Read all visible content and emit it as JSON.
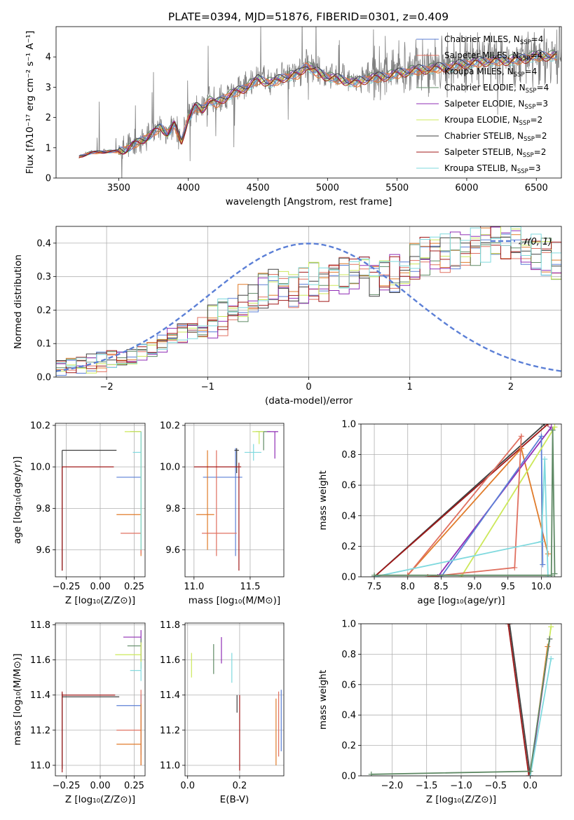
{
  "figure_title": "PLATE=0394, MJD=51876, FIBERID=0301, z=0.409",
  "series_colors": {
    "chabrier_miles": "#5b7fd6",
    "salpeter_miles": "#e07060",
    "kroupa_miles": "#e07b2a",
    "chabrier_elodie": "#5f8a65",
    "salpeter_elodie": "#8f2db5",
    "kroupa_elodie": "#cce85a",
    "chabrier_stelib": "#404040",
    "salpeter_stelib": "#a01818",
    "kroupa_stelib": "#7fd9de",
    "observed": "#808080",
    "gaussian": "#5b7fd6"
  },
  "chart_data": [
    {
      "id": "spectrum",
      "type": "line",
      "xlabel": "wavelength [Angstrom, rest frame]",
      "ylabel": "Flux [fλ10⁻¹⁷ erg cm⁻² s⁻¹ A⁻¹]",
      "xlim": [
        3050,
        6680
      ],
      "ylim": [
        0,
        5
      ],
      "xticks": [
        "3500",
        "4000",
        "4500",
        "5000",
        "5500",
        "6000",
        "6500"
      ],
      "yticks": [
        "0",
        "1",
        "2",
        "3",
        "4"
      ],
      "grid": false,
      "legend_position": "top-right",
      "legend": [
        {
          "base": "Chabrier MILES, N",
          "sub": "SSP",
          "tail": "=4",
          "key": "chabrier_miles"
        },
        {
          "base": "Salpeter MILES, N",
          "sub": "SSP",
          "tail": "=4",
          "key": "salpeter_miles"
        },
        {
          "base": "Kroupa MILES, N",
          "sub": "SSP",
          "tail": "=4",
          "key": "kroupa_miles"
        },
        {
          "base": "Chabrier ELODIE, N",
          "sub": "SSP",
          "tail": "=4",
          "key": "chabrier_elodie"
        },
        {
          "base": "Salpeter ELODIE, N",
          "sub": "SSP",
          "tail": "=3",
          "key": "salpeter_elodie"
        },
        {
          "base": "Kroupa ELODIE, N",
          "sub": "SSP",
          "tail": "=2",
          "key": "kroupa_elodie"
        },
        {
          "base": "Chabrier STELIB, N",
          "sub": "SSP",
          "tail": "=2",
          "key": "chabrier_stelib"
        },
        {
          "base": "Salpeter STELIB, N",
          "sub": "SSP",
          "tail": "=2",
          "key": "salpeter_stelib"
        },
        {
          "base": "Kroupa STELIB, N",
          "sub": "SSP",
          "tail": "=3",
          "key": "kroupa_stelib"
        }
      ],
      "continuum": {
        "x": [
          3210,
          3300,
          3400,
          3500,
          3550,
          3600,
          3700,
          3800,
          3850,
          3900,
          3950,
          4000,
          4050,
          4100,
          4150,
          4200,
          4300,
          4400,
          4500,
          4600,
          4700,
          4800,
          4850,
          4900,
          5000,
          5100,
          5200,
          5300,
          5400,
          5500,
          5600,
          5700,
          5800,
          5900,
          6000,
          6100,
          6200,
          6300,
          6400,
          6500
        ],
        "y": [
          0.7,
          0.85,
          0.88,
          0.9,
          0.95,
          1.1,
          1.35,
          1.7,
          1.5,
          1.8,
          1.2,
          2.0,
          2.4,
          2.3,
          2.6,
          2.5,
          2.8,
          3.0,
          3.3,
          3.2,
          3.4,
          3.5,
          3.8,
          3.6,
          3.4,
          3.3,
          3.2,
          3.35,
          3.4,
          3.5,
          3.6,
          3.65,
          3.7,
          3.75,
          3.85,
          3.9,
          3.95,
          3.95,
          4.0,
          4.1
        ]
      }
    },
    {
      "id": "residuals",
      "type": "histogram",
      "xlabel": "(data-model)/error",
      "ylabel": "Normed distribution",
      "xlim": [
        -2.5,
        2.5
      ],
      "ylim": [
        0,
        0.45
      ],
      "xticks": [
        "−2",
        "−1",
        "0",
        "1",
        "2"
      ],
      "yticks": [
        "0.0",
        "0.1",
        "0.2",
        "0.3",
        "0.4"
      ],
      "grid": true,
      "legend_position": "top-right",
      "legend_label": "𝒩(0, 1)",
      "bin_width": 0.1,
      "bin_start": -2.5,
      "base_density": [
        0.02,
        0.03,
        0.035,
        0.04,
        0.045,
        0.05,
        0.06,
        0.065,
        0.08,
        0.09,
        0.1,
        0.12,
        0.13,
        0.14,
        0.15,
        0.17,
        0.18,
        0.2,
        0.22,
        0.23,
        0.26,
        0.27,
        0.28,
        0.26,
        0.28,
        0.29,
        0.27,
        0.28,
        0.3,
        0.31,
        0.3,
        0.3,
        0.32,
        0.31,
        0.33,
        0.34,
        0.36,
        0.37,
        0.37,
        0.38,
        0.38,
        0.39,
        0.4,
        0.4,
        0.41,
        0.4,
        0.39,
        0.37,
        0.36,
        0.35,
        0.35,
        0.33,
        0.32,
        0.31,
        0.31,
        0.32,
        0.3,
        0.29,
        0.27,
        0.26,
        0.25,
        0.24,
        0.23,
        0.22,
        0.2,
        0.17,
        0.16,
        0.15,
        0.14,
        0.13,
        0.12,
        0.11,
        0.1,
        0.09,
        0.085,
        0.08,
        0.075,
        0.07,
        0.065,
        0.06,
        0.055,
        0.05,
        0.05,
        0.045,
        0.045,
        0.04,
        0.04,
        0.035,
        0.035,
        0.03,
        0.03,
        0.03,
        0.03,
        0.03,
        0.03,
        0.03,
        0.03,
        0.03,
        0.03,
        0.03
      ]
    },
    {
      "id": "age_vs_Z",
      "type": "scatter",
      "xlabel": "Z [log₁₀(Z/Z⊙)]",
      "ylabel": "age  [log₁₀(age/yr)]",
      "xlim": [
        -0.33,
        0.33
      ],
      "ylim": [
        9.47,
        10.21
      ],
      "xticks": [
        "−0.25",
        "0.00",
        "0.25"
      ],
      "yticks": [
        "9.6",
        "9.8",
        "10.0",
        "10.2"
      ],
      "grid": true,
      "points": [
        {
          "key": "chabrier_miles",
          "x": 0.3,
          "y": 9.95,
          "ex": [
            0.12,
            0.3
          ],
          "ey": [
            9.6,
            10.17
          ]
        },
        {
          "key": "kroupa_miles",
          "x": 0.3,
          "y": 9.77,
          "ex": [
            0.12,
            0.3
          ],
          "ey": [
            9.57,
            10.17
          ]
        },
        {
          "key": "salpeter_miles",
          "x": 0.3,
          "y": 9.68,
          "ex": [
            0.15,
            0.3
          ],
          "ey": [
            9.58,
            10.17
          ]
        },
        {
          "key": "chabrier_elodie",
          "x": 0.3,
          "y": 10.17,
          "ex": [
            0.22,
            0.3
          ],
          "ey": [
            9.6,
            10.17
          ]
        },
        {
          "key": "kroupa_elodie",
          "x": 0.3,
          "y": 10.17,
          "ex": [
            0.18,
            0.3
          ],
          "ey": [
            9.6,
            10.17
          ]
        },
        {
          "key": "kroupa_stelib",
          "x": 0.3,
          "y": 10.07,
          "ex": [
            0.24,
            0.3
          ],
          "ey": [
            9.6,
            10.17
          ]
        },
        {
          "key": "chabrier_stelib",
          "x": -0.28,
          "y": 10.08,
          "ex": [
            -0.28,
            0.12
          ],
          "ey": [
            9.5,
            10.08
          ]
        },
        {
          "key": "salpeter_stelib",
          "x": -0.28,
          "y": 10.0,
          "ex": [
            -0.28,
            0.1
          ],
          "ey": [
            9.5,
            10.0
          ]
        }
      ]
    },
    {
      "id": "age_vs_mass",
      "type": "scatter",
      "xlabel": "mass [log₁₀(M/M⊙)]",
      "ylabel": "",
      "xlim": [
        10.92,
        11.8
      ],
      "ylim": [
        9.47,
        10.21
      ],
      "xticks": [
        "11.0",
        "11.5"
      ],
      "yticks": [
        "9.6",
        "9.8",
        "10.0",
        "10.2"
      ],
      "grid": true,
      "points": [
        {
          "key": "chabrier_miles",
          "x": 11.37,
          "y": 9.95,
          "ex": [
            11.08,
            11.43
          ],
          "ey": [
            9.57,
            10.09
          ]
        },
        {
          "key": "kroupa_miles",
          "x": 11.12,
          "y": 9.77,
          "ex": [
            11.02,
            11.18
          ],
          "ey": [
            9.6,
            10.08
          ]
        },
        {
          "key": "salpeter_miles",
          "x": 11.2,
          "y": 9.68,
          "ex": [
            11.07,
            11.38
          ],
          "ey": [
            9.57,
            10.08
          ]
        },
        {
          "key": "chabrier_elodie",
          "x": 11.62,
          "y": 10.17,
          "ex": [
            11.55,
            11.68
          ],
          "ey": [
            10.08,
            10.17
          ]
        },
        {
          "key": "kroupa_elodie",
          "x": 11.58,
          "y": 10.17,
          "ex": [
            11.52,
            11.62
          ],
          "ey": [
            10.11,
            10.17
          ]
        },
        {
          "key": "salpeter_elodie",
          "x": 11.72,
          "y": 10.17,
          "ex": [
            11.65,
            11.75
          ],
          "ey": [
            10.04,
            10.17
          ]
        },
        {
          "key": "kroupa_stelib",
          "x": 11.53,
          "y": 10.07,
          "ex": [
            11.45,
            11.6
          ],
          "ey": [
            10.03,
            10.11
          ]
        },
        {
          "key": "chabrier_stelib",
          "x": 11.38,
          "y": 10.08,
          "ex": [
            11.36,
            11.4
          ],
          "ey": [
            9.97,
            10.09
          ]
        },
        {
          "key": "salpeter_stelib",
          "x": 11.4,
          "y": 10.0,
          "ex": [
            11.0,
            11.42
          ],
          "ey": [
            9.5,
            10.02
          ]
        }
      ]
    },
    {
      "id": "mass_weight_vs_age",
      "type": "line",
      "xlabel": "age  [log₁₀(age/yr)]",
      "ylabel": "mass weight",
      "xlim": [
        7.3,
        10.3
      ],
      "ylim": [
        0,
        1
      ],
      "xticks": [
        "7.5",
        "8.0",
        "8.5",
        "9.0",
        "9.5",
        "10.0"
      ],
      "yticks": [
        "0.0",
        "0.2",
        "0.4",
        "0.6",
        "0.8",
        "1.0"
      ],
      "grid": true,
      "series": [
        {
          "key": "chabrier_stelib",
          "x": [
            7.5,
            10.05
          ],
          "y": [
            0.0,
            1.0
          ]
        },
        {
          "key": "salpeter_stelib",
          "x": [
            7.5,
            10.1
          ],
          "y": [
            0.0,
            1.0
          ]
        },
        {
          "key": "kroupa_miles",
          "x": [
            8.0,
            9.7,
            10.1
          ],
          "y": [
            0.01,
            0.84,
            0.15
          ]
        },
        {
          "key": "salpeter_elodie",
          "x": [
            8.45,
            10.15
          ],
          "y": [
            0.0,
            0.98
          ]
        },
        {
          "key": "chabrier_miles",
          "x": [
            8.5,
            10.0,
            10.02
          ],
          "y": [
            0.0,
            0.92,
            0.08
          ]
        },
        {
          "key": "kroupa_elodie",
          "x": [
            8.8,
            10.2
          ],
          "y": [
            0.0,
            0.98
          ]
        },
        {
          "key": "salpeter_miles",
          "x": [
            8.3,
            9.6,
            9.7,
            8.0
          ],
          "y": [
            0.0,
            0.06,
            0.92,
            0.01
          ]
        },
        {
          "key": "kroupa_stelib",
          "x": [
            7.5,
            10.0,
            10.05,
            10.1
          ],
          "y": [
            0.0,
            0.23,
            0.77,
            0.0
          ]
        },
        {
          "key": "chabrier_elodie",
          "x": [
            7.5,
            10.15,
            10.17,
            10.2
          ],
          "y": [
            0.01,
            0.01,
            0.96,
            0.02
          ]
        }
      ]
    },
    {
      "id": "mass_vs_Z",
      "type": "scatter",
      "xlabel": "Z [log₁₀(Z/Z⊙)]",
      "ylabel": "mass [log₁₀(M/M⊙)]",
      "xlim": [
        -0.33,
        0.33
      ],
      "ylim": [
        10.94,
        11.81
      ],
      "xticks": [
        "−0.25",
        "0.00",
        "0.25"
      ],
      "yticks": [
        "11.0",
        "11.2",
        "11.4",
        "11.6",
        "11.8"
      ],
      "grid": true,
      "points": [
        {
          "key": "salpeter_elodie",
          "x": 0.3,
          "y": 11.73,
          "ex": [
            0.17,
            0.3
          ],
          "ey": [
            11.6,
            11.77
          ]
        },
        {
          "key": "chabrier_elodie",
          "x": 0.3,
          "y": 11.68,
          "ex": [
            0.2,
            0.3
          ],
          "ey": [
            11.55,
            11.72
          ]
        },
        {
          "key": "kroupa_elodie",
          "x": 0.3,
          "y": 11.63,
          "ex": [
            0.11,
            0.3
          ],
          "ey": [
            11.55,
            11.7
          ]
        },
        {
          "key": "kroupa_stelib",
          "x": 0.3,
          "y": 11.54,
          "ex": [
            0.22,
            0.3
          ],
          "ey": [
            11.48,
            11.59
          ]
        },
        {
          "key": "chabrier_miles",
          "x": 0.3,
          "y": 11.34,
          "ex": [
            0.12,
            0.3
          ],
          "ey": [
            11.06,
            11.4
          ]
        },
        {
          "key": "salpeter_miles",
          "x": 0.3,
          "y": 11.2,
          "ex": [
            0.12,
            0.3
          ],
          "ey": [
            11.0,
            11.43
          ]
        },
        {
          "key": "kroupa_miles",
          "x": 0.3,
          "y": 11.12,
          "ex": [
            0.12,
            0.3
          ],
          "ey": [
            11.0,
            11.35
          ]
        },
        {
          "key": "chabrier_stelib",
          "x": -0.28,
          "y": 11.39,
          "ex": [
            -0.28,
            0.14
          ],
          "ey": [
            10.98,
            11.41
          ]
        },
        {
          "key": "salpeter_stelib",
          "x": -0.28,
          "y": 11.4,
          "ex": [
            -0.28,
            0.11
          ],
          "ey": [
            10.96,
            11.42
          ]
        }
      ]
    },
    {
      "id": "mass_vs_ebv",
      "type": "scatter",
      "xlabel": "E(B-V)",
      "ylabel": "",
      "xlim": [
        -0.01,
        0.37
      ],
      "ylim": [
        10.94,
        11.81
      ],
      "xticks": [
        "0.0",
        "0.2"
      ],
      "yticks": [
        "11.0",
        "11.2",
        "11.4",
        "11.6",
        "11.8"
      ],
      "grid": true,
      "points": [
        {
          "key": "kroupa_elodie",
          "x": 0.015,
          "y": 11.57,
          "ex": [
            0.015,
            0.015
          ],
          "ey": [
            11.5,
            11.64
          ]
        },
        {
          "key": "chabrier_elodie",
          "x": 0.1,
          "y": 11.6,
          "ex": [
            0.1,
            0.1
          ],
          "ey": [
            11.52,
            11.69
          ]
        },
        {
          "key": "salpeter_elodie",
          "x": 0.13,
          "y": 11.67,
          "ex": [
            0.13,
            0.13
          ],
          "ey": [
            11.58,
            11.73
          ]
        },
        {
          "key": "kroupa_stelib",
          "x": 0.17,
          "y": 11.55,
          "ex": [
            0.17,
            0.17
          ],
          "ey": [
            11.47,
            11.64
          ]
        },
        {
          "key": "chabrier_stelib",
          "x": 0.19,
          "y": 11.35,
          "ex": [
            0.19,
            0.19
          ],
          "ey": [
            11.3,
            11.4
          ]
        },
        {
          "key": "salpeter_stelib",
          "x": 0.2,
          "y": 11.2,
          "ex": [
            0.2,
            0.2
          ],
          "ey": [
            10.97,
            11.4
          ]
        },
        {
          "key": "kroupa_miles",
          "x": 0.34,
          "y": 11.2,
          "ex": [
            0.34,
            0.34
          ],
          "ey": [
            11.0,
            11.38
          ]
        },
        {
          "key": "salpeter_miles",
          "x": 0.35,
          "y": 11.25,
          "ex": [
            0.35,
            0.35
          ],
          "ey": [
            11.05,
            11.42
          ]
        },
        {
          "key": "chabrier_miles",
          "x": 0.36,
          "y": 11.3,
          "ex": [
            0.36,
            0.36
          ],
          "ey": [
            11.08,
            11.43
          ]
        }
      ]
    },
    {
      "id": "mass_weight_vs_Z",
      "type": "line",
      "xlabel": "Z [log₁₀(Z/Z⊙)]",
      "ylabel": "mass weight",
      "xlim": [
        -2.45,
        0.45
      ],
      "ylim": [
        0,
        1
      ],
      "xticks": [
        "−2.0",
        "−1.5",
        "−1.0",
        "−0.5",
        "0.0"
      ],
      "yticks": [
        "0.0",
        "0.2",
        "0.4",
        "0.6",
        "0.8",
        "1.0"
      ],
      "grid": true,
      "series": [
        {
          "key": "chabrier_stelib",
          "x": [
            -0.3,
            0.0
          ],
          "y": [
            1.0,
            0.0
          ]
        },
        {
          "key": "salpeter_stelib",
          "x": [
            -0.32,
            -0.02
          ],
          "y": [
            1.0,
            0.0
          ]
        },
        {
          "key": "kroupa_miles",
          "x": [
            0.0,
            0.25
          ],
          "y": [
            0.0,
            0.85
          ]
        },
        {
          "key": "kroupa_elodie",
          "x": [
            0.0,
            0.3
          ],
          "y": [
            0.0,
            0.98
          ]
        },
        {
          "key": "salpeter_elodie",
          "x": [
            0.0,
            0.28
          ],
          "y": [
            0.0,
            0.9
          ]
        },
        {
          "key": "kroupa_stelib",
          "x": [
            0.0,
            0.3
          ],
          "y": [
            0.0,
            0.77
          ]
        },
        {
          "key": "chabrier_elodie",
          "x": [
            -2.3,
            0.0,
            0.28
          ],
          "y": [
            0.01,
            0.03,
            0.9
          ]
        }
      ]
    }
  ]
}
